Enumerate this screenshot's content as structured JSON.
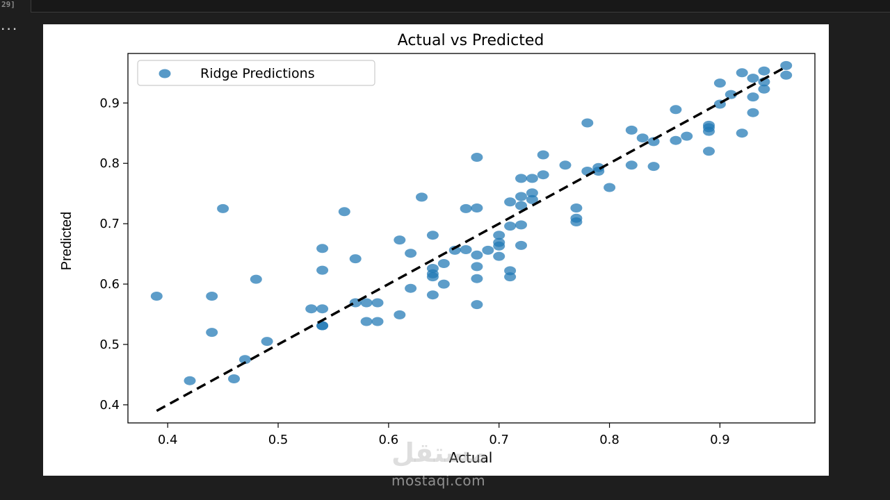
{
  "notebook": {
    "exec_count": "29]",
    "output_prompt": "..."
  },
  "watermark": {
    "logo_text": "مستقل",
    "site": "mostaqi.com"
  },
  "chart_data": {
    "type": "scatter",
    "title": "Actual vs Predicted",
    "xlabel": "Actual",
    "ylabel": "Predicted",
    "xlim": [
      0.364,
      0.986
    ],
    "ylim": [
      0.37,
      0.982
    ],
    "xticks": [
      0.4,
      0.5,
      0.6,
      0.7,
      0.8,
      0.9
    ],
    "yticks": [
      0.4,
      0.5,
      0.6,
      0.7,
      0.8,
      0.9
    ],
    "grid": false,
    "legend_position": "upper-left",
    "colors": {
      "points": "#1f77b4",
      "reference_line": "#000000"
    },
    "series": [
      {
        "name": "Ridge Predictions",
        "points": [
          [
            0.39,
            0.58
          ],
          [
            0.42,
            0.44
          ],
          [
            0.44,
            0.58
          ],
          [
            0.44,
            0.52
          ],
          [
            0.45,
            0.725
          ],
          [
            0.46,
            0.443
          ],
          [
            0.47,
            0.475
          ],
          [
            0.48,
            0.608
          ],
          [
            0.49,
            0.505
          ],
          [
            0.53,
            0.559
          ],
          [
            0.54,
            0.659
          ],
          [
            0.54,
            0.623
          ],
          [
            0.54,
            0.559
          ],
          [
            0.54,
            0.531
          ],
          [
            0.54,
            0.531
          ],
          [
            0.56,
            0.72
          ],
          [
            0.57,
            0.642
          ],
          [
            0.57,
            0.569
          ],
          [
            0.58,
            0.569
          ],
          [
            0.58,
            0.538
          ],
          [
            0.59,
            0.569
          ],
          [
            0.59,
            0.538
          ],
          [
            0.61,
            0.673
          ],
          [
            0.61,
            0.549
          ],
          [
            0.62,
            0.651
          ],
          [
            0.62,
            0.593
          ],
          [
            0.63,
            0.744
          ],
          [
            0.64,
            0.681
          ],
          [
            0.64,
            0.626
          ],
          [
            0.64,
            0.617
          ],
          [
            0.64,
            0.612
          ],
          [
            0.64,
            0.582
          ],
          [
            0.65,
            0.634
          ],
          [
            0.65,
            0.6
          ],
          [
            0.66,
            0.656
          ],
          [
            0.67,
            0.725
          ],
          [
            0.67,
            0.657
          ],
          [
            0.68,
            0.81
          ],
          [
            0.68,
            0.726
          ],
          [
            0.68,
            0.648
          ],
          [
            0.68,
            0.629
          ],
          [
            0.68,
            0.609
          ],
          [
            0.68,
            0.566
          ],
          [
            0.69,
            0.656
          ],
          [
            0.7,
            0.681
          ],
          [
            0.7,
            0.669
          ],
          [
            0.7,
            0.663
          ],
          [
            0.7,
            0.646
          ],
          [
            0.71,
            0.736
          ],
          [
            0.71,
            0.696
          ],
          [
            0.71,
            0.622
          ],
          [
            0.71,
            0.612
          ],
          [
            0.72,
            0.775
          ],
          [
            0.72,
            0.745
          ],
          [
            0.72,
            0.73
          ],
          [
            0.72,
            0.698
          ],
          [
            0.72,
            0.664
          ],
          [
            0.73,
            0.775
          ],
          [
            0.73,
            0.751
          ],
          [
            0.73,
            0.74
          ],
          [
            0.74,
            0.814
          ],
          [
            0.74,
            0.781
          ],
          [
            0.76,
            0.797
          ],
          [
            0.77,
            0.726
          ],
          [
            0.77,
            0.709
          ],
          [
            0.77,
            0.703
          ],
          [
            0.78,
            0.867
          ],
          [
            0.78,
            0.787
          ],
          [
            0.79,
            0.793
          ],
          [
            0.79,
            0.787
          ],
          [
            0.8,
            0.76
          ],
          [
            0.82,
            0.855
          ],
          [
            0.82,
            0.797
          ],
          [
            0.83,
            0.842
          ],
          [
            0.84,
            0.836
          ],
          [
            0.84,
            0.795
          ],
          [
            0.86,
            0.889
          ],
          [
            0.86,
            0.838
          ],
          [
            0.87,
            0.845
          ],
          [
            0.89,
            0.863
          ],
          [
            0.89,
            0.859
          ],
          [
            0.89,
            0.853
          ],
          [
            0.89,
            0.82
          ],
          [
            0.9,
            0.933
          ],
          [
            0.9,
            0.898
          ],
          [
            0.91,
            0.914
          ],
          [
            0.92,
            0.95
          ],
          [
            0.92,
            0.85
          ],
          [
            0.93,
            0.941
          ],
          [
            0.93,
            0.91
          ],
          [
            0.93,
            0.884
          ],
          [
            0.94,
            0.953
          ],
          [
            0.94,
            0.935
          ],
          [
            0.94,
            0.923
          ],
          [
            0.96,
            0.962
          ],
          [
            0.96,
            0.946
          ]
        ]
      }
    ],
    "reference_line": {
      "from": [
        0.39,
        0.39
      ],
      "to": [
        0.96,
        0.96
      ],
      "style": "dashed"
    }
  }
}
